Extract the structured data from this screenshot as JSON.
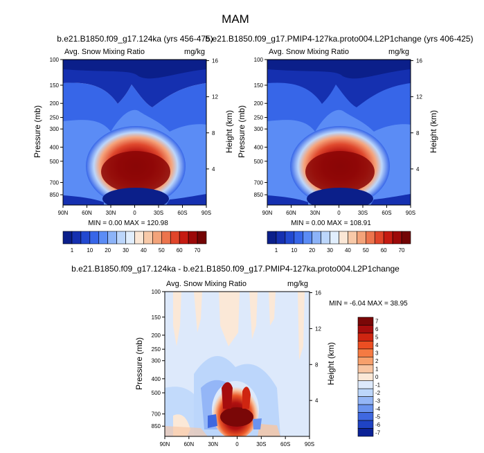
{
  "figure_title": "MAM",
  "chart_data": [
    {
      "type": "heatmap",
      "title": "b.e21.B1850.f09_g17.124ka (yrs 456-475)",
      "left_label": "Avg. Snow Mixing Ratio",
      "right_label": "mg/kg",
      "xlabel": "",
      "ylabel": "Pressure (mb)",
      "ylabel_right": "Height (km)",
      "x_ticks": [
        "90N",
        "60N",
        "30N",
        "0",
        "30S",
        "60S",
        "90S"
      ],
      "y_ticks": [
        "100",
        "150",
        "200",
        "250",
        "300",
        "400",
        "500",
        "700",
        "850"
      ],
      "y_right_ticks": [
        "16",
        "12",
        "8",
        "4"
      ],
      "stats": "MIN =  0.00  MAX = 120.98",
      "min": 0.0,
      "max": 120.98,
      "colorbar_labels": [
        "1",
        "10",
        "20",
        "30",
        "40",
        "50",
        "60",
        "70"
      ]
    },
    {
      "type": "heatmap",
      "title": "b.e21.B1850.f09_g17.PMIP4-127ka.proto004.L2P1change (yrs 406-425)",
      "left_label": "Avg. Snow Mixing Ratio",
      "right_label": "mg/kg",
      "xlabel": "",
      "ylabel": "Pressure (mb)",
      "ylabel_right": "Height (km)",
      "x_ticks": [
        "90N",
        "60N",
        "30N",
        "0",
        "30S",
        "60S",
        "90S"
      ],
      "y_ticks": [
        "100",
        "150",
        "200",
        "250",
        "300",
        "400",
        "500",
        "700",
        "850"
      ],
      "y_right_ticks": [
        "16",
        "12",
        "8",
        "4"
      ],
      "stats": "MIN =  0.00  MAX = 108.91",
      "min": 0.0,
      "max": 108.91,
      "colorbar_labels": [
        "1",
        "10",
        "20",
        "30",
        "40",
        "50",
        "60",
        "70"
      ]
    },
    {
      "type": "heatmap",
      "title": "b.e21.B1850.f09_g17.124ka - b.e21.B1850.f09_g17.PMIP4-127ka.proto004.L2P1change",
      "left_label": "Avg. Snow Mixing Ratio",
      "right_label": "mg/kg",
      "xlabel": "",
      "ylabel": "Pressure (mb)",
      "ylabel_right": "Height (km)",
      "x_ticks": [
        "90N",
        "60N",
        "30N",
        "0",
        "30S",
        "60S",
        "90S"
      ],
      "y_ticks": [
        "100",
        "150",
        "200",
        "250",
        "300",
        "400",
        "500",
        "700",
        "850"
      ],
      "y_right_ticks": [
        "16",
        "12",
        "8",
        "4"
      ],
      "stats": "MIN = -6.04   MAX =  38.95",
      "min": -6.04,
      "max": 38.95,
      "colorbar_labels": [
        "7",
        "6",
        "5",
        "4",
        "3",
        "2",
        "1",
        "0",
        "-1",
        "-2",
        "-3",
        "-4",
        "-5",
        "-6",
        "-7"
      ]
    }
  ],
  "colors": {
    "abs_scale": [
      "#0b1f8a",
      "#1530b0",
      "#2249d0",
      "#3766e8",
      "#5b8cf5",
      "#8cb3f8",
      "#bcd6fb",
      "#e1eefd",
      "#fbe7d6",
      "#f8c9a8",
      "#f3a37a",
      "#ec744d",
      "#e0452a",
      "#c51b12",
      "#9c0909",
      "#730404"
    ],
    "diff_scale": [
      "#7a0707",
      "#a60d0d",
      "#cf2511",
      "#ec4e22",
      "#f57a42",
      "#f7a06c",
      "#f8c5a2",
      "#fbe8d7",
      "#dde9fb",
      "#bcd6fb",
      "#94b6f7",
      "#6a93ef",
      "#3f68e0",
      "#1f43c4",
      "#0c2296"
    ]
  }
}
